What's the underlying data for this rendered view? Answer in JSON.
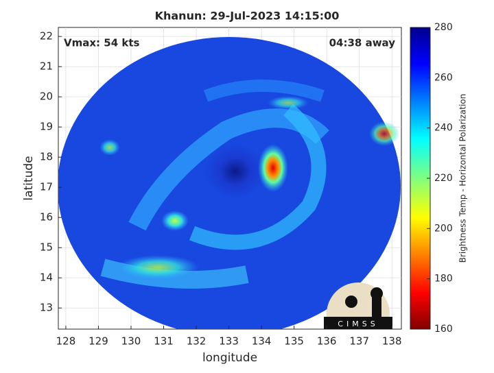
{
  "chart_data": {
    "type": "image-map",
    "title": "Khanun: 29-Jul-2023 14:15:00",
    "annotations": [
      "Vmax: 54 kts",
      "04:38 away"
    ],
    "x_label": "longitude",
    "y_label": "latitude",
    "xlim": [
      127.77,
      138.29
    ],
    "xticks": [
      128,
      129,
      130,
      131,
      132,
      133,
      134,
      135,
      136,
      137,
      138
    ],
    "ylim": [
      12.3,
      22.3
    ],
    "yticks": [
      13,
      14,
      15,
      16,
      17,
      18,
      19,
      20,
      21,
      22
    ],
    "grid": true,
    "colorbar": {
      "label": "Brightness Temp - Horizontal Polarization",
      "lim": [
        160,
        280
      ],
      "ticks": [
        160,
        180,
        200,
        220,
        240,
        260,
        280
      ]
    },
    "logo": "CIMSS"
  }
}
